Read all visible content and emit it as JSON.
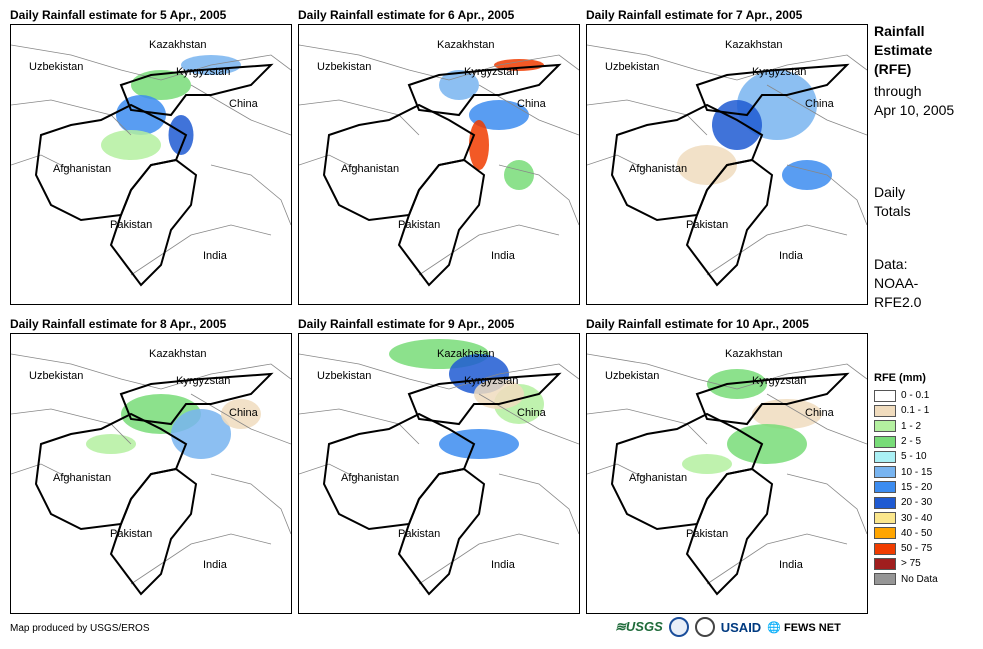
{
  "panels": [
    {
      "title": "Daily Rainfall estimate for 5 Apr., 2005"
    },
    {
      "title": "Daily Rainfall estimate for 6 Apr., 2005"
    },
    {
      "title": "Daily Rainfall estimate for 7 Apr., 2005"
    },
    {
      "title": "Daily Rainfall estimate for 8 Apr., 2005"
    },
    {
      "title": "Daily Rainfall estimate for 9 Apr., 2005"
    },
    {
      "title": "Daily Rainfall estimate for 10 Apr., 2005"
    }
  ],
  "map_labels": {
    "kazakhstan": "Kazakhstan",
    "uzbekistan": "Uzbekistan",
    "kyrgyzstan": "Kyrgyzstan",
    "china": "China",
    "afghanistan": "Afghanistan",
    "pakistan": "Pakistan",
    "india": "India"
  },
  "side": {
    "title_1": "Rainfall",
    "title_2": "Estimate",
    "title_3": "(RFE)",
    "through_1": "through",
    "through_2": "Apr 10, 2005",
    "daily_1": "Daily",
    "daily_2": "Totals",
    "data_1": "Data:",
    "data_2": "NOAA-",
    "data_3": "RFE2.0"
  },
  "legend": {
    "title": "RFE (mm)",
    "items": [
      {
        "label": "0 - 0.1",
        "color": "#ffffff"
      },
      {
        "label": "0.1 - 1",
        "color": "#f0dcbe"
      },
      {
        "label": "1 - 2",
        "color": "#b4f0a0"
      },
      {
        "label": "2 - 5",
        "color": "#78dc78"
      },
      {
        "label": "5 - 10",
        "color": "#aaf0f5"
      },
      {
        "label": "10 - 15",
        "color": "#78b4f0"
      },
      {
        "label": "15 - 20",
        "color": "#3c8cf0"
      },
      {
        "label": "20 - 30",
        "color": "#1e5ad2"
      },
      {
        "label": "30 - 40",
        "color": "#fae68c"
      },
      {
        "label": "40 - 50",
        "color": "#ffa500"
      },
      {
        "label": "50 - 75",
        "color": "#f03c00"
      },
      {
        "label": "> 75",
        "color": "#a01e1e"
      },
      {
        "label": "No Data",
        "color": "#969696"
      }
    ]
  },
  "credit": "Map produced by USGS/EROS",
  "logos": {
    "usgs": "USGS",
    "usaid": "USAID",
    "fews": "FEWS NET"
  }
}
